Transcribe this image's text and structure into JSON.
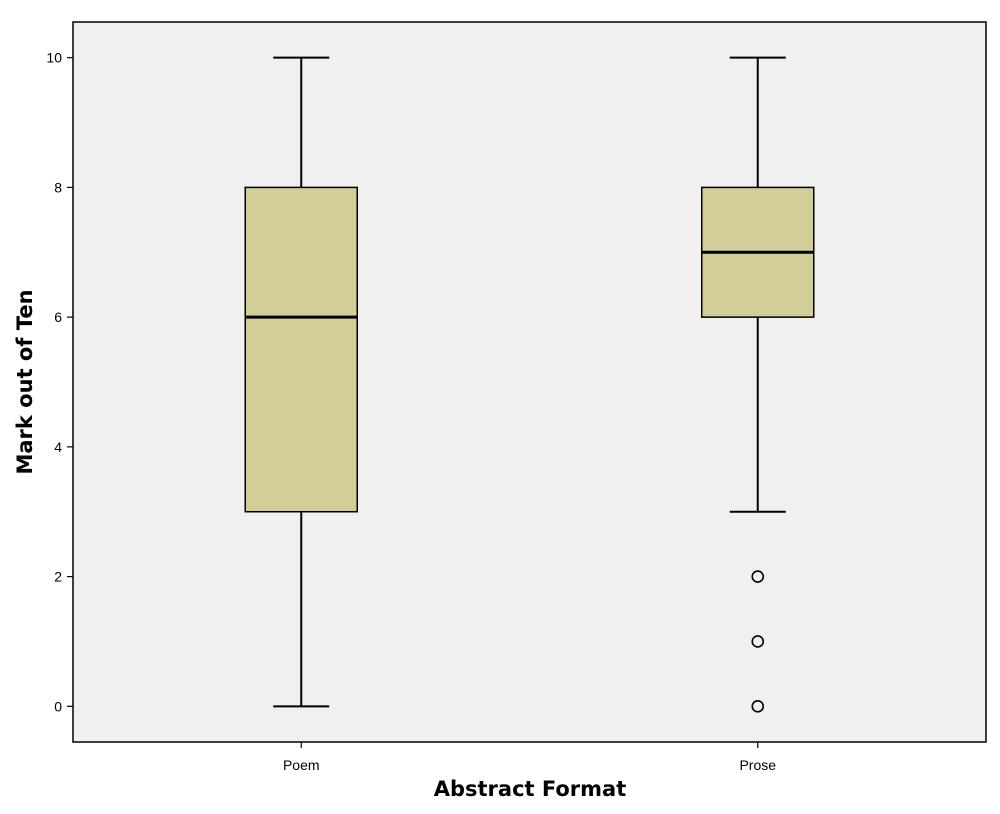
{
  "chart_data": {
    "type": "boxplot",
    "title": "",
    "xlabel": "Abstract Format",
    "ylabel": "Mark out of Ten",
    "ylim": [
      -0.55,
      10.55
    ],
    "yticks": [
      0,
      2,
      4,
      6,
      8,
      10
    ],
    "categories": [
      "Poem",
      "Prose"
    ],
    "boxes": [
      {
        "category": "Poem",
        "whisker_low": 0,
        "q1": 3,
        "median": 6,
        "q3": 8,
        "whisker_high": 10,
        "outliers": []
      },
      {
        "category": "Prose",
        "whisker_low": 3,
        "q1": 6,
        "median": 7,
        "q3": 8,
        "whisker_high": 10,
        "outliers": [
          0,
          1,
          2
        ]
      }
    ],
    "grid": false,
    "colors": {
      "plot_background": "#f0f0f0",
      "box_fill": "#d3ce97",
      "stroke": "#000000"
    }
  }
}
